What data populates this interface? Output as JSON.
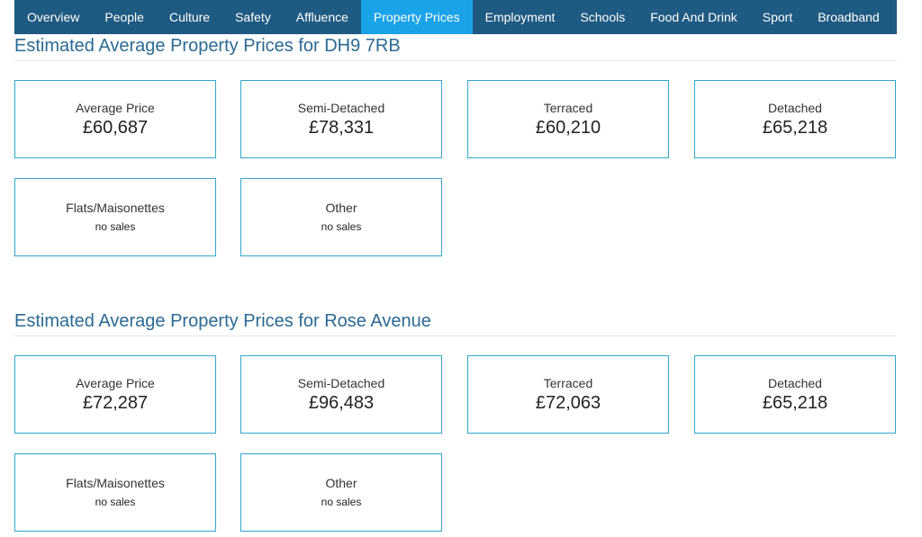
{
  "nav": {
    "items": [
      {
        "label": "Overview"
      },
      {
        "label": "People"
      },
      {
        "label": "Culture"
      },
      {
        "label": "Safety"
      },
      {
        "label": "Affluence"
      },
      {
        "label": "Property Prices",
        "active": true
      },
      {
        "label": "Employment"
      },
      {
        "label": "Schools"
      },
      {
        "label": "Food And Drink"
      },
      {
        "label": "Sport"
      },
      {
        "label": "Broadband"
      }
    ]
  },
  "sections": [
    {
      "title": "Estimated Average Property Prices for DH9 7RB",
      "cards": [
        {
          "label": "Average Price",
          "value": "£60,687"
        },
        {
          "label": "Semi-Detached",
          "value": "£78,331"
        },
        {
          "label": "Terraced",
          "value": "£60,210"
        },
        {
          "label": "Detached",
          "value": "£65,218"
        },
        {
          "label": "Flats/Maisonettes",
          "value": "no sales"
        },
        {
          "label": "Other",
          "value": "no sales"
        }
      ]
    },
    {
      "title": "Estimated Average Property Prices for Rose Avenue",
      "cards": [
        {
          "label": "Average Price",
          "value": "£72,287"
        },
        {
          "label": "Semi-Detached",
          "value": "£96,483"
        },
        {
          "label": "Terraced",
          "value": "£72,063"
        },
        {
          "label": "Detached",
          "value": "£65,218"
        },
        {
          "label": "Flats/Maisonettes",
          "value": "no sales"
        },
        {
          "label": "Other",
          "value": "no sales"
        }
      ]
    }
  ],
  "colors": {
    "nav_bg": "#1f5a82",
    "nav_active": "#1aa3e8",
    "title": "#2b6a93",
    "card_border": "#31a7cc"
  }
}
